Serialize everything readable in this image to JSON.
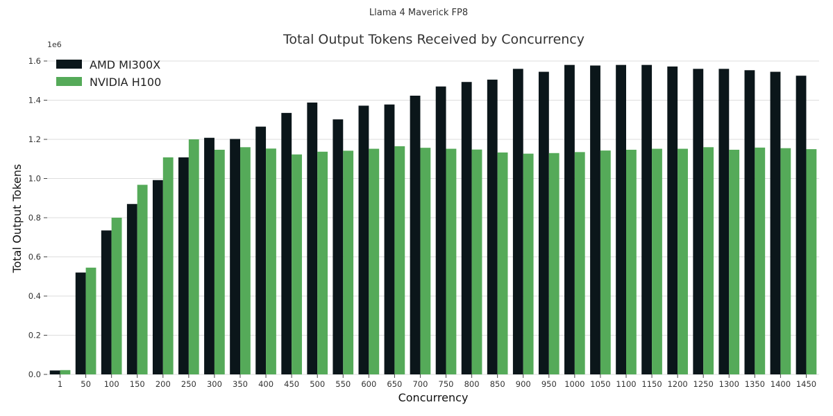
{
  "suptitle": "Llama 4 Maverick FP8",
  "chart_data": {
    "type": "bar",
    "title": "Total Output Tokens Received by Concurrency",
    "xlabel": "Concurrency",
    "ylabel": "Total Output Tokens",
    "y_offset_label": "1e6",
    "ylim": [
      0,
      1.6
    ],
    "y_ticks": [
      "0.0",
      "0.2",
      "0.4",
      "0.6",
      "0.8",
      "1.0",
      "1.2",
      "1.4",
      "1.6"
    ],
    "grid": "horizontal",
    "legend_position": "top-left",
    "categories": [
      "1",
      "50",
      "100",
      "150",
      "200",
      "250",
      "300",
      "350",
      "400",
      "450",
      "500",
      "550",
      "600",
      "650",
      "700",
      "750",
      "800",
      "850",
      "900",
      "950",
      "1000",
      "1050",
      "1100",
      "1150",
      "1200",
      "1250",
      "1300",
      "1350",
      "1400",
      "1450"
    ],
    "series": [
      {
        "name": "AMD MI300X",
        "color": "#0b161a",
        "values": [
          0.02,
          0.52,
          0.735,
          0.87,
          0.992,
          1.108,
          1.208,
          1.202,
          1.265,
          1.335,
          1.388,
          1.302,
          1.372,
          1.378,
          1.423,
          1.47,
          1.493,
          1.505,
          1.56,
          1.545,
          1.58,
          1.577,
          1.58,
          1.58,
          1.572,
          1.56,
          1.56,
          1.553,
          1.545,
          1.525
        ]
      },
      {
        "name": "NVIDIA H100",
        "color": "#55aa59",
        "values": [
          0.022,
          0.545,
          0.8,
          0.968,
          1.108,
          1.2,
          1.147,
          1.16,
          1.153,
          1.123,
          1.137,
          1.142,
          1.152,
          1.165,
          1.157,
          1.152,
          1.148,
          1.133,
          1.127,
          1.13,
          1.135,
          1.143,
          1.147,
          1.152,
          1.152,
          1.16,
          1.147,
          1.158,
          1.155,
          1.15
        ]
      }
    ]
  }
}
